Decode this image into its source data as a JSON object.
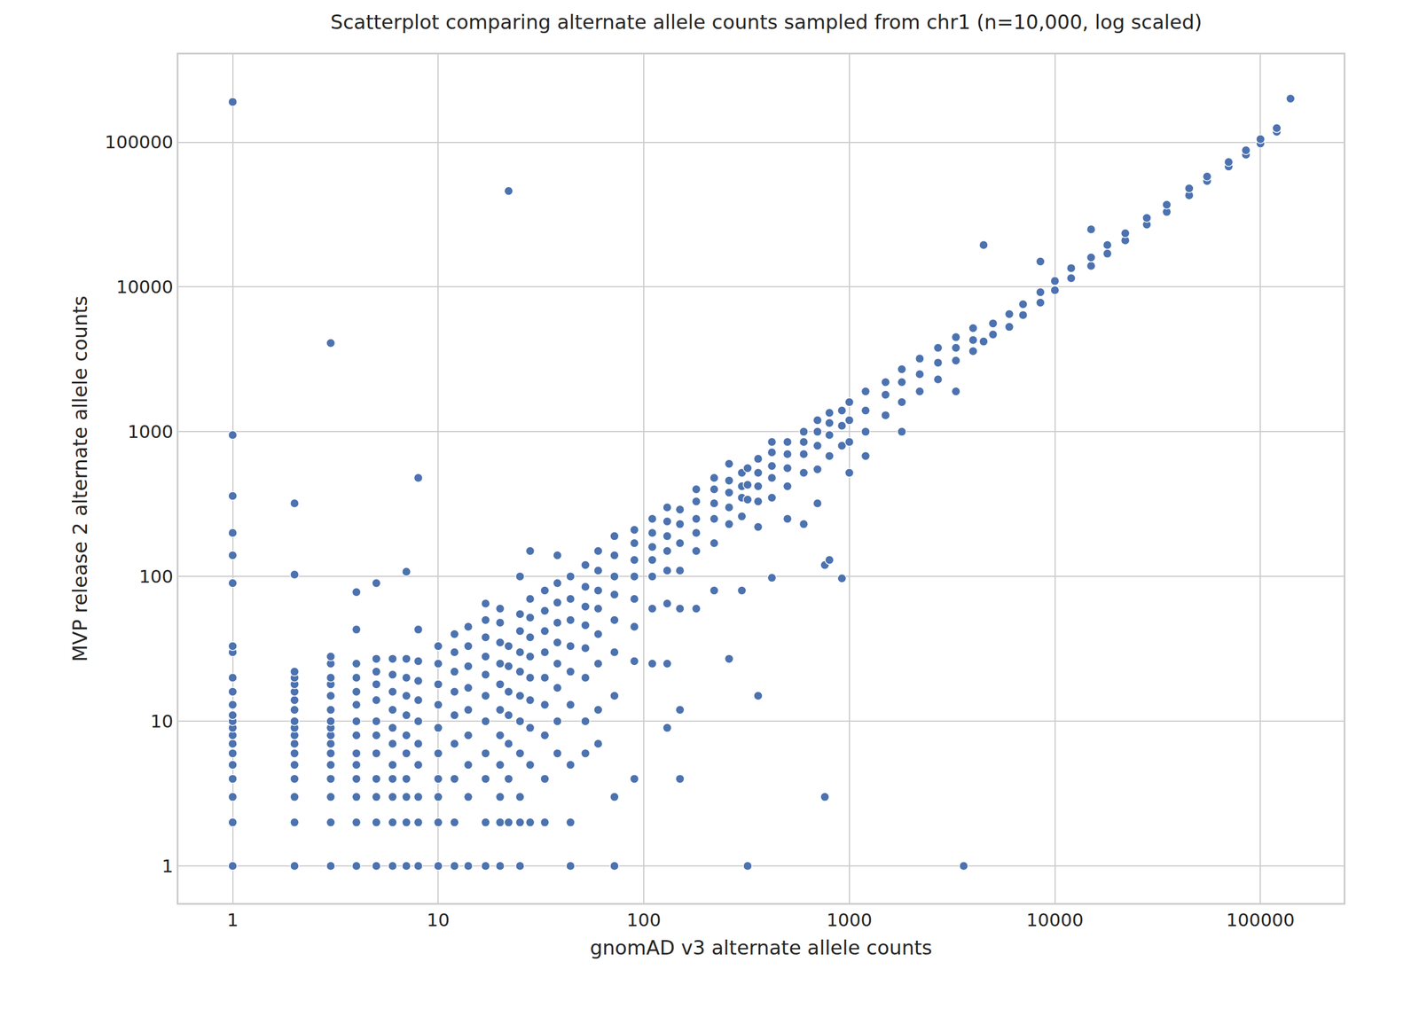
{
  "chart_data": {
    "type": "scatter",
    "title": "Scatterplot comparing alternate allele counts sampled from chr1 (n=10,000, log scaled)",
    "x_label": "gnomAD v3 alternate allele counts",
    "y_label": "MVP release 2 alternate allele counts",
    "color": "#4c72b0",
    "marker": "circle",
    "log": true,
    "grid": true,
    "xlim": [
      0.545,
      254000
    ],
    "ylim": [
      0.555,
      404000
    ],
    "xticks": [
      1,
      10,
      100,
      1000,
      10000,
      100000
    ],
    "yticks": [
      1,
      10,
      100,
      1000,
      10000,
      100000
    ],
    "x": [
      1,
      1,
      1,
      1,
      1,
      1,
      1,
      1,
      1,
      1,
      1,
      1,
      1,
      1,
      1,
      1,
      1,
      1,
      1,
      1,
      1,
      1,
      2,
      2,
      2,
      2,
      2,
      2,
      2,
      2,
      2,
      2,
      2,
      2,
      2,
      2,
      2,
      2,
      2,
      2,
      3,
      3,
      3,
      3,
      3,
      3,
      3,
      3,
      3,
      3,
      3,
      3,
      3,
      3,
      3,
      3,
      3,
      4,
      4,
      4,
      4,
      4,
      4,
      4,
      4,
      4,
      4,
      4,
      4,
      4,
      4,
      5,
      5,
      5,
      5,
      5,
      5,
      5,
      5,
      5,
      5,
      5,
      5,
      6,
      6,
      6,
      6,
      6,
      6,
      6,
      6,
      6,
      6,
      6,
      7,
      7,
      7,
      7,
      7,
      7,
      7,
      7,
      7,
      7,
      7,
      8,
      8,
      8,
      8,
      8,
      8,
      8,
      8,
      8,
      8,
      8,
      10,
      10,
      10,
      10,
      10,
      10,
      10,
      10,
      10,
      10,
      12,
      12,
      12,
      12,
      12,
      12,
      12,
      12,
      12,
      14,
      14,
      14,
      14,
      14,
      14,
      14,
      14,
      14,
      17,
      17,
      17,
      17,
      17,
      17,
      17,
      17,
      17,
      17,
      17,
      20,
      20,
      20,
      20,
      20,
      20,
      20,
      20,
      20,
      20,
      20,
      22,
      22,
      22,
      22,
      22,
      22,
      22,
      22,
      25,
      25,
      25,
      25,
      25,
      25,
      25,
      25,
      25,
      25,
      25,
      28,
      28,
      28,
      28,
      28,
      28,
      28,
      28,
      28,
      28,
      33,
      33,
      33,
      33,
      33,
      33,
      33,
      33,
      33,
      38,
      38,
      38,
      38,
      38,
      38,
      38,
      38,
      38,
      44,
      44,
      44,
      44,
      44,
      44,
      44,
      44,
      44,
      52,
      52,
      52,
      52,
      52,
      52,
      52,
      52,
      60,
      60,
      60,
      60,
      60,
      60,
      60,
      60,
      72,
      72,
      72,
      72,
      72,
      72,
      72,
      72,
      72,
      90,
      90,
      90,
      90,
      90,
      90,
      90,
      90,
      110,
      110,
      110,
      110,
      110,
      110,
      110,
      130,
      130,
      130,
      130,
      130,
      130,
      130,
      130,
      150,
      150,
      150,
      150,
      150,
      150,
      150,
      180,
      180,
      180,
      180,
      180,
      180,
      220,
      220,
      220,
      220,
      220,
      220,
      260,
      260,
      260,
      260,
      260,
      260,
      300,
      300,
      300,
      300,
      300,
      320,
      320,
      320,
      320,
      360,
      360,
      360,
      360,
      360,
      360,
      420,
      420,
      420,
      420,
      420,
      420,
      500,
      500,
      500,
      500,
      500,
      600,
      600,
      600,
      600,
      600,
      700,
      700,
      700,
      700,
      700,
      760,
      760,
      800,
      800,
      800,
      800,
      800,
      920,
      920,
      920,
      920,
      1000,
      1000,
      1000,
      1000,
      1200,
      1200,
      1200,
      1200,
      1500,
      1500,
      1500,
      1800,
      1800,
      1800,
      1800,
      2200,
      2200,
      2200,
      2700,
      2700,
      2700,
      3300,
      3300,
      3300,
      3300,
      3600,
      4000,
      4000,
      4000,
      4500,
      4500,
      5000,
      5000,
      6000,
      6000,
      7000,
      7000,
      8500,
      8500,
      8500,
      10000,
      10000,
      12000,
      12000,
      15000,
      15000,
      15000,
      18000,
      18000,
      22000,
      22000,
      28000,
      28000,
      35000,
      35000,
      45000,
      45000,
      55000,
      55000,
      70000,
      70000,
      85000,
      85000,
      100000,
      100000,
      120000,
      120000,
      140000
    ],
    "values": [
      1,
      2,
      3,
      4,
      5,
      6,
      7,
      8,
      9,
      10,
      11,
      13,
      16,
      20,
      30,
      33,
      90,
      140,
      200,
      360,
      950,
      190000,
      1,
      2,
      3,
      4,
      5,
      6,
      7,
      8,
      9,
      10,
      12,
      14,
      16,
      18,
      20,
      22,
      103,
      320,
      1,
      2,
      3,
      4,
      5,
      6,
      7,
      8,
      9,
      10,
      12,
      15,
      18,
      20,
      25,
      28,
      4100,
      1,
      2,
      3,
      4,
      5,
      6,
      8,
      10,
      13,
      16,
      20,
      25,
      43,
      78,
      1,
      2,
      3,
      4,
      6,
      8,
      10,
      14,
      18,
      22,
      27,
      90,
      1,
      2,
      3,
      4,
      5,
      7,
      9,
      12,
      16,
      21,
      27,
      1,
      2,
      3,
      4,
      6,
      8,
      11,
      15,
      20,
      27,
      108,
      1,
      2,
      3,
      5,
      7,
      10,
      14,
      19,
      26,
      43,
      480,
      1,
      2,
      3,
      4,
      6,
      9,
      13,
      18,
      25,
      33,
      1,
      2,
      4,
      7,
      11,
      16,
      22,
      30,
      40,
      1,
      3,
      5,
      8,
      12,
      17,
      24,
      33,
      45,
      1,
      2,
      4,
      6,
      10,
      15,
      21,
      28,
      38,
      50,
      65,
      1,
      2,
      3,
      5,
      8,
      12,
      18,
      25,
      35,
      48,
      60,
      2,
      4,
      7,
      11,
      16,
      24,
      33,
      46000,
      1,
      2,
      3,
      6,
      10,
      15,
      22,
      30,
      42,
      55,
      100,
      2,
      5,
      9,
      14,
      20,
      28,
      38,
      52,
      70,
      150,
      2,
      4,
      8,
      13,
      20,
      30,
      42,
      58,
      80,
      6,
      10,
      17,
      25,
      35,
      48,
      66,
      90,
      140,
      1,
      2,
      5,
      13,
      22,
      33,
      50,
      70,
      100,
      6,
      10,
      20,
      32,
      46,
      62,
      85,
      120,
      7,
      12,
      25,
      40,
      60,
      80,
      110,
      150,
      1,
      3,
      15,
      30,
      50,
      75,
      100,
      140,
      190,
      4,
      26,
      45,
      70,
      100,
      130,
      170,
      210,
      25,
      60,
      100,
      130,
      160,
      200,
      250,
      9,
      25,
      65,
      110,
      150,
      190,
      240,
      300,
      4,
      12,
      60,
      110,
      170,
      230,
      290,
      60,
      150,
      200,
      250,
      330,
      400,
      80,
      170,
      250,
      320,
      400,
      480,
      27,
      230,
      300,
      380,
      460,
      600,
      80,
      260,
      350,
      420,
      520,
      1,
      340,
      430,
      560,
      15,
      220,
      330,
      420,
      520,
      650,
      98,
      350,
      480,
      580,
      720,
      850,
      250,
      420,
      560,
      700,
      850,
      230,
      520,
      700,
      850,
      1000,
      320,
      550,
      800,
      1000,
      1200,
      3,
      120,
      130,
      680,
      950,
      1150,
      1350,
      97,
      800,
      1100,
      1400,
      520,
      850,
      1200,
      1600,
      680,
      1000,
      1400,
      1900,
      1300,
      1800,
      2200,
      1000,
      1600,
      2200,
      2700,
      1900,
      2500,
      3200,
      2300,
      3000,
      3800,
      1900,
      3100,
      3800,
      4500,
      1,
      3600,
      4300,
      5200,
      19500,
      4200,
      4700,
      5600,
      5300,
      6500,
      6400,
      7600,
      7800,
      9200,
      15000,
      9500,
      11000,
      11500,
      13500,
      14000,
      16000,
      25000,
      17000,
      19500,
      21000,
      23500,
      27000,
      30000,
      33000,
      37000,
      43000,
      48000,
      54000,
      58000,
      68000,
      73000,
      82000,
      88000,
      98000,
      105000,
      118000,
      125000,
      200000
    ]
  }
}
